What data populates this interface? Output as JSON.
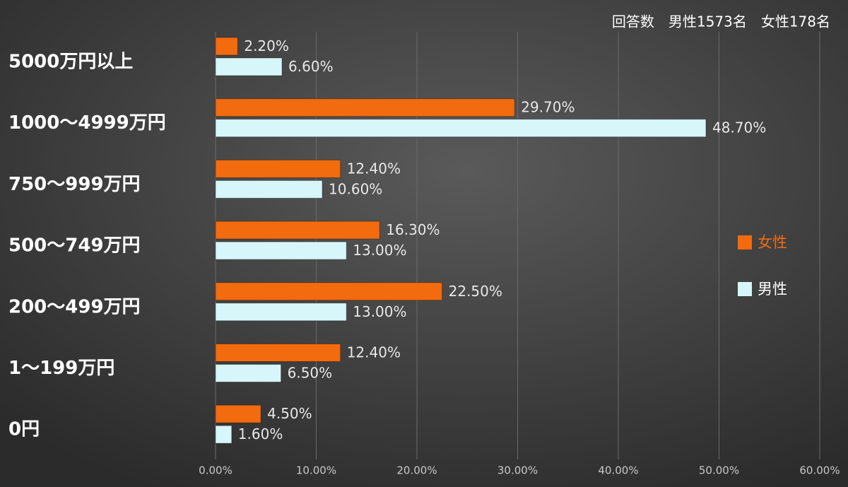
{
  "chart_data": {
    "type": "hbar",
    "subtitle": "回答数　男性1573名　女性178名",
    "categories": [
      "5000万円以上",
      "1000～4999万円",
      "750～999万円",
      "500～749万円",
      "200～499万円",
      "1～199万円",
      "0円"
    ],
    "series": [
      {
        "name": "女性",
        "color": "#f26b0f",
        "values": [
          2.2,
          29.7,
          12.4,
          16.3,
          22.5,
          12.4,
          4.5
        ],
        "value_labels": [
          "2.20%",
          "29.70%",
          "12.40%",
          "16.30%",
          "22.50%",
          "12.40%",
          "4.50%"
        ]
      },
      {
        "name": "男性",
        "color": "#d6f6f9",
        "values": [
          6.6,
          48.7,
          10.6,
          13.0,
          13.0,
          6.5,
          1.6
        ],
        "value_labels": [
          "6.60%",
          "48.70%",
          "10.60%",
          "13.00%",
          "13.00%",
          "6.50%",
          "1.60%"
        ]
      }
    ],
    "xlim": [
      0,
      60
    ],
    "xticks": [
      {
        "value": 0,
        "label": "0.00%"
      },
      {
        "value": 10,
        "label": "10.00%"
      },
      {
        "value": 20,
        "label": "20.00%"
      },
      {
        "value": 30,
        "label": "30.00%"
      },
      {
        "value": 40,
        "label": "40.00%"
      },
      {
        "value": 50,
        "label": "50.00%"
      },
      {
        "value": 60,
        "label": "60.00%"
      }
    ],
    "grid": true,
    "legend": "right"
  }
}
